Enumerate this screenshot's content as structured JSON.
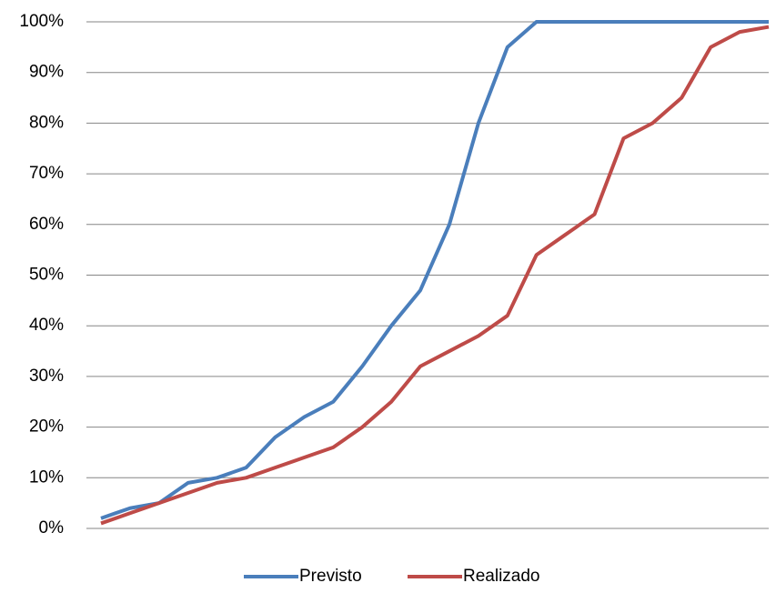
{
  "chart_data": {
    "type": "line",
    "categories": [
      null,
      null,
      null,
      null,
      null,
      null,
      null,
      null,
      null,
      null,
      null,
      null,
      null,
      null,
      null,
      null,
      null,
      null,
      null,
      null,
      null,
      null,
      null,
      null
    ],
    "series": [
      {
        "name": "Previsto",
        "color": "#4a7ebb",
        "values": [
          2,
          4,
          5,
          9,
          10,
          12,
          18,
          22,
          25,
          32,
          40,
          47,
          60,
          80,
          95,
          100,
          100,
          100,
          100,
          100,
          100,
          100,
          100,
          100
        ]
      },
      {
        "name": "Realizado",
        "color": "#be4b48",
        "values": [
          1,
          3,
          5,
          7,
          9,
          10,
          12,
          14,
          16,
          20,
          25,
          32,
          35,
          38,
          42,
          54,
          58,
          62,
          77,
          80,
          85,
          95,
          98,
          99
        ]
      }
    ],
    "ylim": [
      0,
      100
    ],
    "yticks": [
      {
        "value": 0,
        "label": "0%"
      },
      {
        "value": 10,
        "label": "10%"
      },
      {
        "value": 20,
        "label": "20%"
      },
      {
        "value": 30,
        "label": "30%"
      },
      {
        "value": 40,
        "label": "40%"
      },
      {
        "value": 50,
        "label": "50%"
      },
      {
        "value": 60,
        "label": "60%"
      },
      {
        "value": 70,
        "label": "70%"
      },
      {
        "value": 80,
        "label": "80%"
      },
      {
        "value": 90,
        "label": "90%"
      },
      {
        "value": 100,
        "label": "100%"
      }
    ],
    "grid": true,
    "legend": "bottom"
  }
}
